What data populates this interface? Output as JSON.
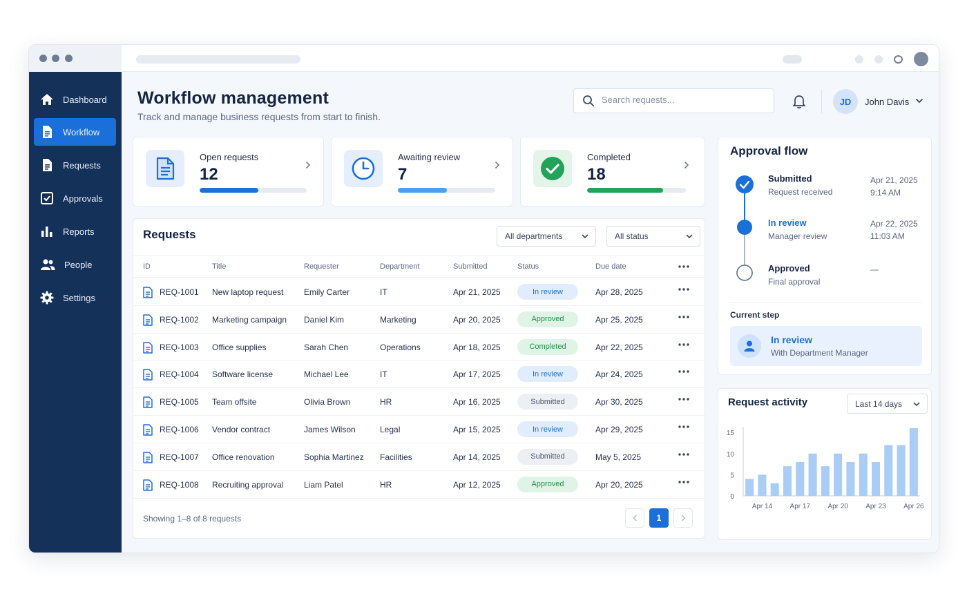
{
  "sidebar": {
    "items": [
      {
        "label": "Dashboard",
        "icon": "home-icon"
      },
      {
        "label": "Workflow",
        "icon": "document-icon",
        "active": true
      },
      {
        "label": "Requests",
        "icon": "file-list-icon"
      },
      {
        "label": "Approvals",
        "icon": "checkbox-icon"
      },
      {
        "label": "Reports",
        "icon": "bar-chart-icon"
      },
      {
        "label": "People",
        "icon": "people-icon"
      },
      {
        "label": "Settings",
        "icon": "gear-icon"
      }
    ]
  },
  "header": {
    "title": "Workflow management",
    "subtitle": "Track and manage business requests from start to finish.",
    "search_placeholder": "Search requests...",
    "user_initials": "JD",
    "user_name": "John Davis"
  },
  "stats": [
    {
      "label": "Open requests",
      "value": "12",
      "progress": 0.55,
      "color": "#1a6fd8"
    },
    {
      "label": "Awaiting review",
      "value": "7",
      "progress": 0.5,
      "color": "#4f9ef0"
    },
    {
      "label": "Completed",
      "value": "18",
      "progress": 0.77,
      "color": "#22a35a"
    }
  ],
  "requests": {
    "title": "Requests",
    "filter_department": "All departments",
    "filter_status": "All status",
    "columns": [
      "ID",
      "Title",
      "Requester",
      "Department",
      "Submitted",
      "Status",
      "Due date"
    ],
    "rows": [
      {
        "id": "REQ-1001",
        "title": "New laptop request",
        "requester": "Emily Carter",
        "department": "IT",
        "submitted": "Apr 21, 2025",
        "status": "In review",
        "status_type": "review",
        "due": "Apr 28, 2025"
      },
      {
        "id": "REQ-1002",
        "title": "Marketing campaign",
        "requester": "Daniel Kim",
        "department": "Marketing",
        "submitted": "Apr 20, 2025",
        "status": "Approved",
        "status_type": "approved",
        "due": "Apr 25, 2025"
      },
      {
        "id": "REQ-1003",
        "title": "Office supplies",
        "requester": "Sarah Chen",
        "department": "Operations",
        "submitted": "Apr 18, 2025",
        "status": "Completed",
        "status_type": "completed",
        "due": "Apr 22, 2025"
      },
      {
        "id": "REQ-1004",
        "title": "Software license",
        "requester": "Michael Lee",
        "department": "IT",
        "submitted": "Apr 17, 2025",
        "status": "In review",
        "status_type": "review",
        "due": "Apr 24, 2025"
      },
      {
        "id": "REQ-1005",
        "title": "Team offsite",
        "requester": "Olivia Brown",
        "department": "HR",
        "submitted": "Apr 16, 2025",
        "status": "Submitted",
        "status_type": "submitted",
        "due": "Apr 30, 2025"
      },
      {
        "id": "REQ-1006",
        "title": "Vendor contract",
        "requester": "James Wilson",
        "department": "Legal",
        "submitted": "Apr 15, 2025",
        "status": "In review",
        "status_type": "review",
        "due": "Apr 29, 2025"
      },
      {
        "id": "REQ-1007",
        "title": "Office renovation",
        "requester": "Sophia Martinez",
        "department": "Facilities",
        "submitted": "Apr 14, 2025",
        "status": "Submitted",
        "status_type": "submitted",
        "due": "May 5, 2025"
      },
      {
        "id": "REQ-1008",
        "title": "Recruiting approval",
        "requester": "Liam Patel",
        "department": "HR",
        "submitted": "Apr 12, 2025",
        "status": "Approved",
        "status_type": "approved",
        "due": "Apr 20, 2025"
      }
    ],
    "footer": "Showing 1–8 of 8 requests",
    "current_page": "1"
  },
  "approval_flow": {
    "title": "Approval flow",
    "steps": [
      {
        "title": "Submitted",
        "subtitle": "Request received",
        "date": "Apr 21, 2025",
        "time": "9:14 AM",
        "state": "done"
      },
      {
        "title": "In review",
        "subtitle": "Manager review",
        "date": "Apr 22, 2025",
        "time": "11:03 AM",
        "state": "current"
      },
      {
        "title": "Approved",
        "subtitle": "Final approval",
        "date": "—",
        "time": "",
        "state": "pending"
      }
    ],
    "current_step_label": "Current step",
    "current_step_title": "In review",
    "current_step_subtitle": "With Department Manager"
  },
  "activity": {
    "title": "Request activity",
    "range": "Last 14 days"
  },
  "chart_data": {
    "type": "bar",
    "title": "Request activity",
    "categories": [
      "Apr 13",
      "Apr 14",
      "Apr 15",
      "Apr 16",
      "Apr 17",
      "Apr 18",
      "Apr 19",
      "Apr 20",
      "Apr 21",
      "Apr 22",
      "Apr 23",
      "Apr 24",
      "Apr 25",
      "Apr 26"
    ],
    "tick_labels": [
      "Apr 14",
      "Apr 17",
      "Apr 20",
      "Apr 23",
      "Apr 26"
    ],
    "values": [
      4,
      5,
      3,
      7,
      8,
      10,
      7,
      10,
      8,
      10,
      8,
      12,
      12,
      16
    ],
    "yticks": [
      0,
      5,
      10,
      15
    ],
    "ylim": [
      0,
      16
    ],
    "color": "#a9cdf5",
    "grid": false,
    "legend": "none"
  }
}
